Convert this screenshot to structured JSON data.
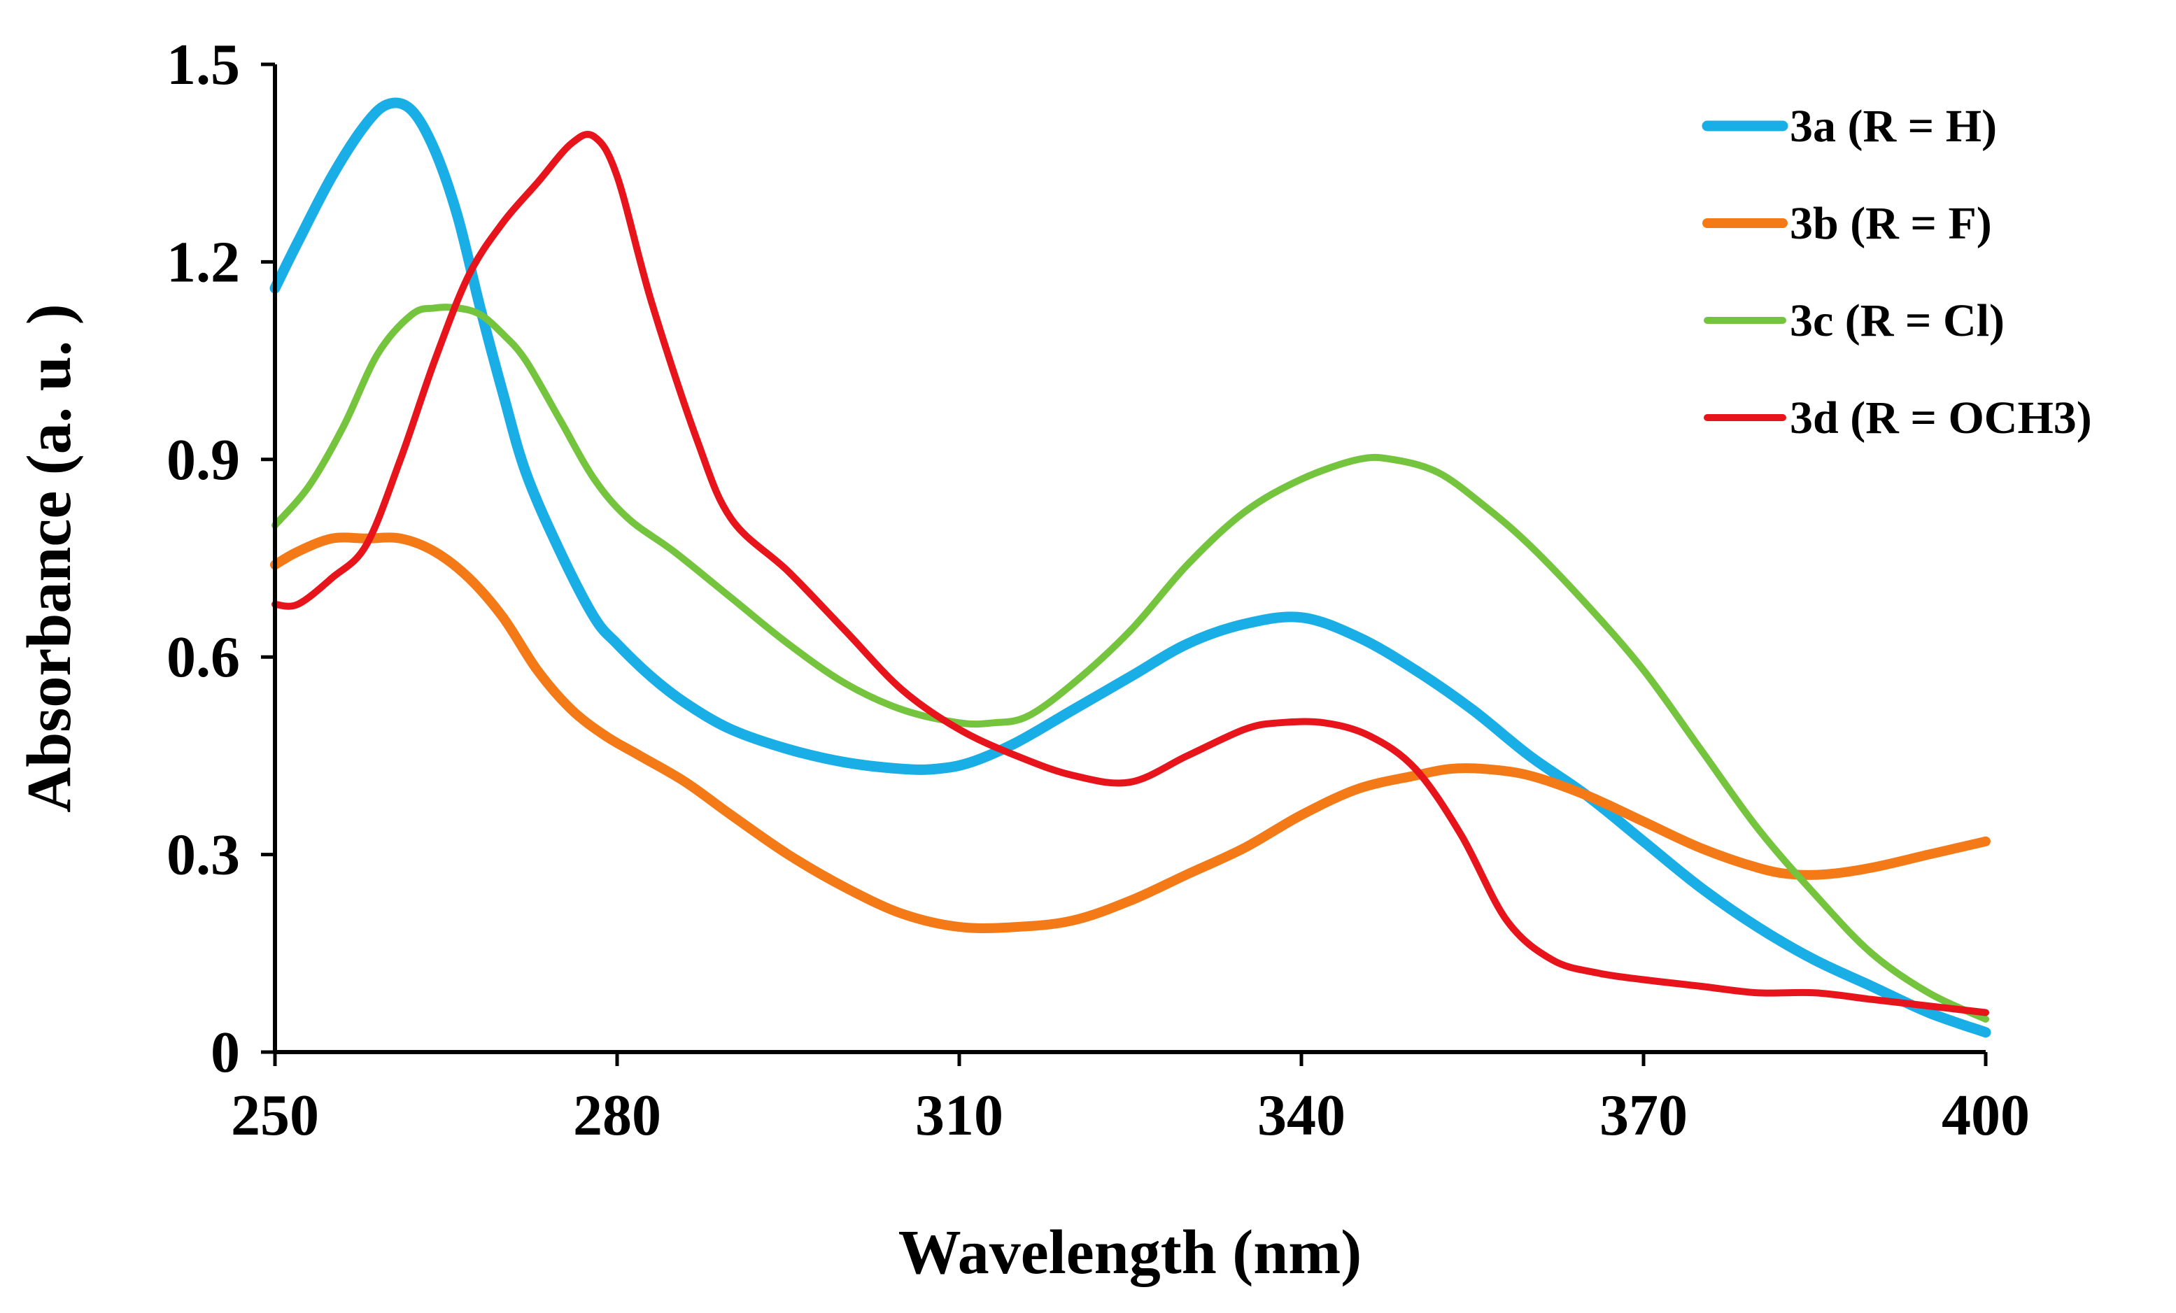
{
  "chart_data": {
    "type": "line",
    "title": "",
    "xlabel": "Wavelength (nm)",
    "ylabel": "Absorbance (a. u. )",
    "xlim": [
      250,
      400
    ],
    "ylim": [
      0,
      1.5
    ],
    "xticks": [
      250,
      280,
      310,
      340,
      370,
      400
    ],
    "xtick_labels": [
      "250",
      "280",
      "310",
      "340",
      "370",
      "400"
    ],
    "yticks": [
      0,
      0.3,
      0.6,
      0.9,
      1.2,
      1.5
    ],
    "ytick_labels": [
      "0",
      "0.3",
      "0.6",
      "0.9",
      "1.2",
      "1.5"
    ],
    "grid": false,
    "legend_position": "top-right",
    "series": [
      {
        "name": "3a (R = H)",
        "color": "#19aee6",
        "width": 15,
        "x": [
          250,
          252,
          255,
          258,
          260,
          262,
          264,
          266,
          268,
          270,
          272,
          275,
          278,
          280,
          283,
          286,
          290,
          295,
          300,
          305,
          308,
          311,
          315,
          320,
          325,
          330,
          335,
          340,
          345,
          350,
          355,
          360,
          365,
          370,
          375,
          380,
          385,
          390,
          395,
          400
        ],
        "y": [
          1.16,
          1.23,
          1.33,
          1.41,
          1.44,
          1.43,
          1.37,
          1.27,
          1.13,
          1.0,
          0.88,
          0.76,
          0.66,
          0.62,
          0.57,
          0.53,
          0.49,
          0.46,
          0.44,
          0.43,
          0.43,
          0.44,
          0.47,
          0.52,
          0.57,
          0.62,
          0.65,
          0.66,
          0.63,
          0.58,
          0.52,
          0.45,
          0.39,
          0.32,
          0.25,
          0.19,
          0.14,
          0.1,
          0.06,
          0.03
        ]
      },
      {
        "name": "3b (R = F)",
        "color": "#f47a18",
        "width": 14,
        "x": [
          250,
          252,
          255,
          258,
          261,
          264,
          267,
          270,
          273,
          276,
          279,
          282,
          286,
          290,
          295,
          300,
          305,
          310,
          315,
          320,
          325,
          330,
          335,
          340,
          345,
          350,
          353,
          356,
          360,
          365,
          370,
          375,
          380,
          383,
          386,
          390,
          395,
          400
        ],
        "y": [
          0.74,
          0.76,
          0.78,
          0.78,
          0.78,
          0.76,
          0.72,
          0.66,
          0.58,
          0.52,
          0.48,
          0.45,
          0.41,
          0.36,
          0.3,
          0.25,
          0.21,
          0.19,
          0.19,
          0.2,
          0.23,
          0.27,
          0.31,
          0.36,
          0.4,
          0.42,
          0.43,
          0.43,
          0.42,
          0.39,
          0.35,
          0.31,
          0.28,
          0.27,
          0.27,
          0.28,
          0.3,
          0.32
        ]
      },
      {
        "name": "3c (R = Cl)",
        "color": "#74c43e",
        "width": 10,
        "x": [
          250,
          253,
          256,
          259,
          262,
          264,
          266,
          268,
          270,
          272,
          275,
          278,
          281,
          285,
          290,
          295,
          300,
          305,
          310,
          313,
          316,
          320,
          325,
          330,
          335,
          340,
          345,
          348,
          352,
          356,
          360,
          365,
          370,
          375,
          380,
          385,
          390,
          395,
          400
        ],
        "y": [
          0.8,
          0.86,
          0.95,
          1.06,
          1.12,
          1.13,
          1.13,
          1.12,
          1.09,
          1.05,
          0.96,
          0.87,
          0.81,
          0.76,
          0.69,
          0.62,
          0.56,
          0.52,
          0.5,
          0.5,
          0.51,
          0.56,
          0.64,
          0.74,
          0.82,
          0.87,
          0.9,
          0.9,
          0.88,
          0.83,
          0.77,
          0.68,
          0.58,
          0.46,
          0.34,
          0.24,
          0.15,
          0.09,
          0.05
        ]
      },
      {
        "name": "3d (R = OCH3)",
        "color": "#e8141b",
        "width": 10,
        "x": [
          250,
          252,
          255,
          258,
          261,
          264,
          267,
          270,
          273,
          276,
          278,
          280,
          283,
          287,
          290,
          295,
          300,
          305,
          310,
          315,
          320,
          325,
          330,
          335,
          338,
          342,
          346,
          350,
          354,
          358,
          362,
          366,
          370,
          375,
          380,
          385,
          390,
          395,
          400
        ],
        "y": [
          0.68,
          0.68,
          0.72,
          0.77,
          0.9,
          1.05,
          1.18,
          1.26,
          1.32,
          1.38,
          1.39,
          1.33,
          1.14,
          0.93,
          0.81,
          0.73,
          0.64,
          0.55,
          0.49,
          0.45,
          0.42,
          0.41,
          0.45,
          0.49,
          0.5,
          0.5,
          0.48,
          0.43,
          0.33,
          0.2,
          0.14,
          0.12,
          0.11,
          0.1,
          0.09,
          0.09,
          0.08,
          0.07,
          0.06
        ]
      }
    ]
  }
}
